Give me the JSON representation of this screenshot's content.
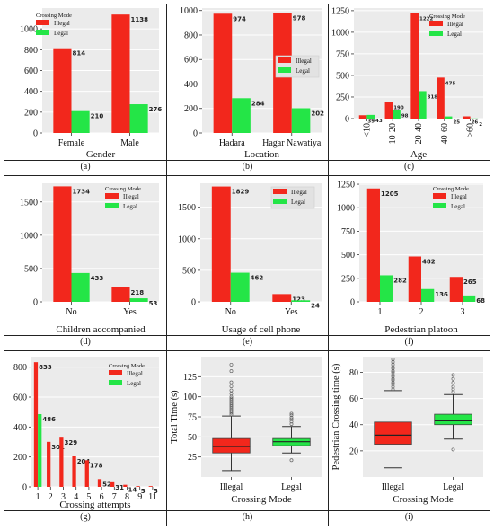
{
  "colors": {
    "illegal": "#f2271c",
    "legal": "#24e547",
    "panel_bg": "#ebebeb",
    "grid": "#ffffff"
  },
  "chart_data": [
    {
      "id": "a",
      "caption": "(a)",
      "type": "bar",
      "xlabel": "Gender",
      "ylabel": "",
      "ylim": [
        0,
        1200
      ],
      "yticks": [
        0,
        200,
        400,
        600,
        800,
        1000
      ],
      "categories": [
        "Female",
        "Male"
      ],
      "legend_title": "Crossing Mode",
      "legend": "top-left",
      "series": [
        {
          "name": "Illegal",
          "values": [
            814,
            1138
          ]
        },
        {
          "name": "Legal",
          "values": [
            210,
            276
          ]
        }
      ]
    },
    {
      "id": "b",
      "caption": "(b)",
      "type": "bar",
      "xlabel": "Location",
      "ylabel": "",
      "ylim": [
        0,
        1020
      ],
      "yticks": [
        0,
        200,
        400,
        600,
        800,
        1000
      ],
      "categories": [
        "Hadara",
        "Hagar Nawatiya"
      ],
      "legend_title": "",
      "legend": "right",
      "series": [
        {
          "name": "Illegal",
          "values": [
            974,
            978
          ]
        },
        {
          "name": "Legal",
          "values": [
            284,
            202
          ]
        }
      ]
    },
    {
      "id": "c",
      "caption": "(c)",
      "type": "bar",
      "xlabel": "Age",
      "ylabel": "",
      "ylim": [
        0,
        1280
      ],
      "yticks": [
        0,
        250,
        500,
        750,
        1000,
        1250
      ],
      "categories": [
        "<10",
        "10-20",
        "20-40",
        "40-60",
        ">60"
      ],
      "legend_title": "Crossing Mode",
      "legend": "top-right",
      "series": [
        {
          "name": "Illegal",
          "values": [
            39,
            190,
            1222,
            475,
            26
          ]
        },
        {
          "name": "Legal",
          "values": [
            43,
            98,
            318,
            25,
            2
          ]
        }
      ]
    },
    {
      "id": "d",
      "caption": "(d)",
      "type": "bar",
      "xlabel": "Children accompanied",
      "ylabel": "",
      "ylim": [
        0,
        1780
      ],
      "yticks": [
        0,
        500,
        1000,
        1500
      ],
      "categories": [
        "No",
        "Yes"
      ],
      "legend_title": "Crossing Mode",
      "legend": "top-right",
      "series": [
        {
          "name": "Illegal",
          "values": [
            1734,
            218
          ]
        },
        {
          "name": "Legal",
          "values": [
            433,
            53
          ]
        }
      ]
    },
    {
      "id": "e",
      "caption": "(e)",
      "type": "bar",
      "xlabel": "Usage of cell phone",
      "ylabel": "",
      "ylim": [
        0,
        1880
      ],
      "yticks": [
        0,
        500,
        1000,
        1500
      ],
      "categories": [
        "No",
        "Yes"
      ],
      "legend_title": "",
      "legend": "top-right",
      "series": [
        {
          "name": "Illegal",
          "values": [
            1829,
            123
          ]
        },
        {
          "name": "Legal",
          "values": [
            462,
            24
          ]
        }
      ]
    },
    {
      "id": "f",
      "caption": "(f)",
      "type": "bar",
      "xlabel": "Pedestrian platoon",
      "ylabel": "",
      "ylim": [
        0,
        1260
      ],
      "yticks": [
        0,
        250,
        500,
        750,
        1000,
        1250
      ],
      "categories": [
        "1",
        "2",
        "3"
      ],
      "legend_title": "Crossing Mode",
      "legend": "top-right",
      "series": [
        {
          "name": "Illegal",
          "values": [
            1205,
            482,
            265
          ]
        },
        {
          "name": "Legal",
          "values": [
            282,
            136,
            68
          ]
        }
      ]
    },
    {
      "id": "g",
      "caption": "(g)",
      "type": "bar",
      "xlabel": "Crossing attempts",
      "ylabel": "",
      "ylim": [
        0,
        870
      ],
      "yticks": [
        0,
        200,
        400,
        600,
        800
      ],
      "categories": [
        "1",
        "2",
        "3",
        "4",
        "5",
        "6",
        "7",
        "8",
        "9",
        "11"
      ],
      "legend_title": "Crossing Mode",
      "legend": "top-right",
      "series": [
        {
          "name": "Illegal",
          "values": [
            833,
            301,
            329,
            204,
            178,
            52,
            31,
            14,
            5,
            5
          ]
        },
        {
          "name": "Legal",
          "values": [
            486,
            null,
            null,
            null,
            null,
            null,
            null,
            null,
            null,
            null
          ]
        }
      ]
    },
    {
      "id": "h",
      "caption": "(h)",
      "type": "box",
      "xlabel": "Crossing Mode",
      "ylabel": "Total Time (s)",
      "ylim": [
        0,
        150
      ],
      "yticks": [
        25,
        50,
        75,
        100,
        125
      ],
      "categories": [
        "Illegal",
        "Legal"
      ],
      "boxes": [
        {
          "name": "Illegal",
          "whisker_low": 8,
          "q1": 30,
          "median": 38,
          "q3": 48,
          "whisker_high": 76,
          "outliers": [
            78,
            80,
            82,
            84,
            86,
            88,
            90,
            92,
            94,
            96,
            98,
            100,
            104,
            108,
            113,
            118,
            132,
            140
          ]
        },
        {
          "name": "Legal",
          "whisker_low": 30,
          "q1": 39,
          "median": 44,
          "q3": 48,
          "whisker_high": 63,
          "outliers": [
            21,
            66,
            69,
            72,
            74,
            77,
            79
          ]
        }
      ]
    },
    {
      "id": "i",
      "caption": "(i)",
      "type": "box",
      "xlabel": "Crossing Mode",
      "ylabel": "Pedestrian Crossing time (s)",
      "ylim": [
        0,
        92
      ],
      "yticks": [
        20,
        40,
        60,
        80
      ],
      "categories": [
        "Illegal",
        "Legal"
      ],
      "boxes": [
        {
          "name": "Illegal",
          "whisker_low": 7,
          "q1": 25,
          "median": 32,
          "q3": 42,
          "whisker_high": 66,
          "outliers": [
            67,
            69,
            71,
            72,
            74,
            75,
            77,
            78,
            80,
            81,
            83,
            84,
            86,
            88,
            90
          ]
        },
        {
          "name": "Legal",
          "whisker_low": 29,
          "q1": 40,
          "median": 43,
          "q3": 48,
          "whisker_high": 63,
          "outliers": [
            21,
            65,
            67,
            69,
            72,
            75,
            78
          ]
        }
      ]
    }
  ]
}
